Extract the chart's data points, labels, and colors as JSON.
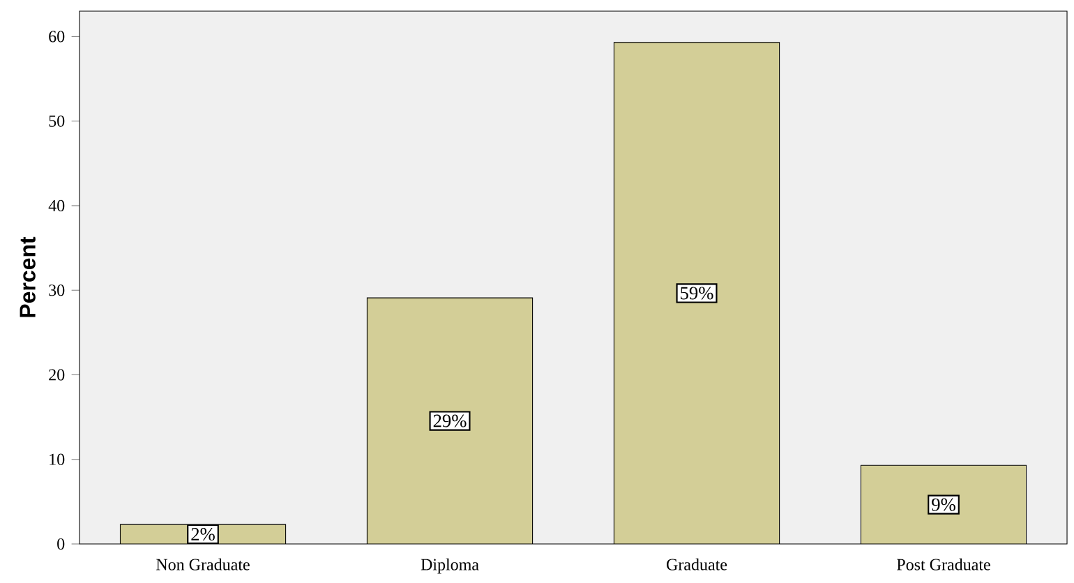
{
  "chart_data": {
    "type": "bar",
    "ylabel": "Percent",
    "categories": [
      "Non Graduate",
      "Diploma",
      "Graduate",
      "Post Graduate"
    ],
    "values": [
      2.3,
      29.1,
      59.3,
      9.3
    ],
    "value_labels": [
      "2%",
      "29%",
      "59%",
      "9%"
    ],
    "color": "#d3ce97",
    "ylim": [
      0,
      63
    ],
    "yticks": [
      0,
      10,
      20,
      30,
      40,
      50,
      60
    ],
    "grid": false
  }
}
